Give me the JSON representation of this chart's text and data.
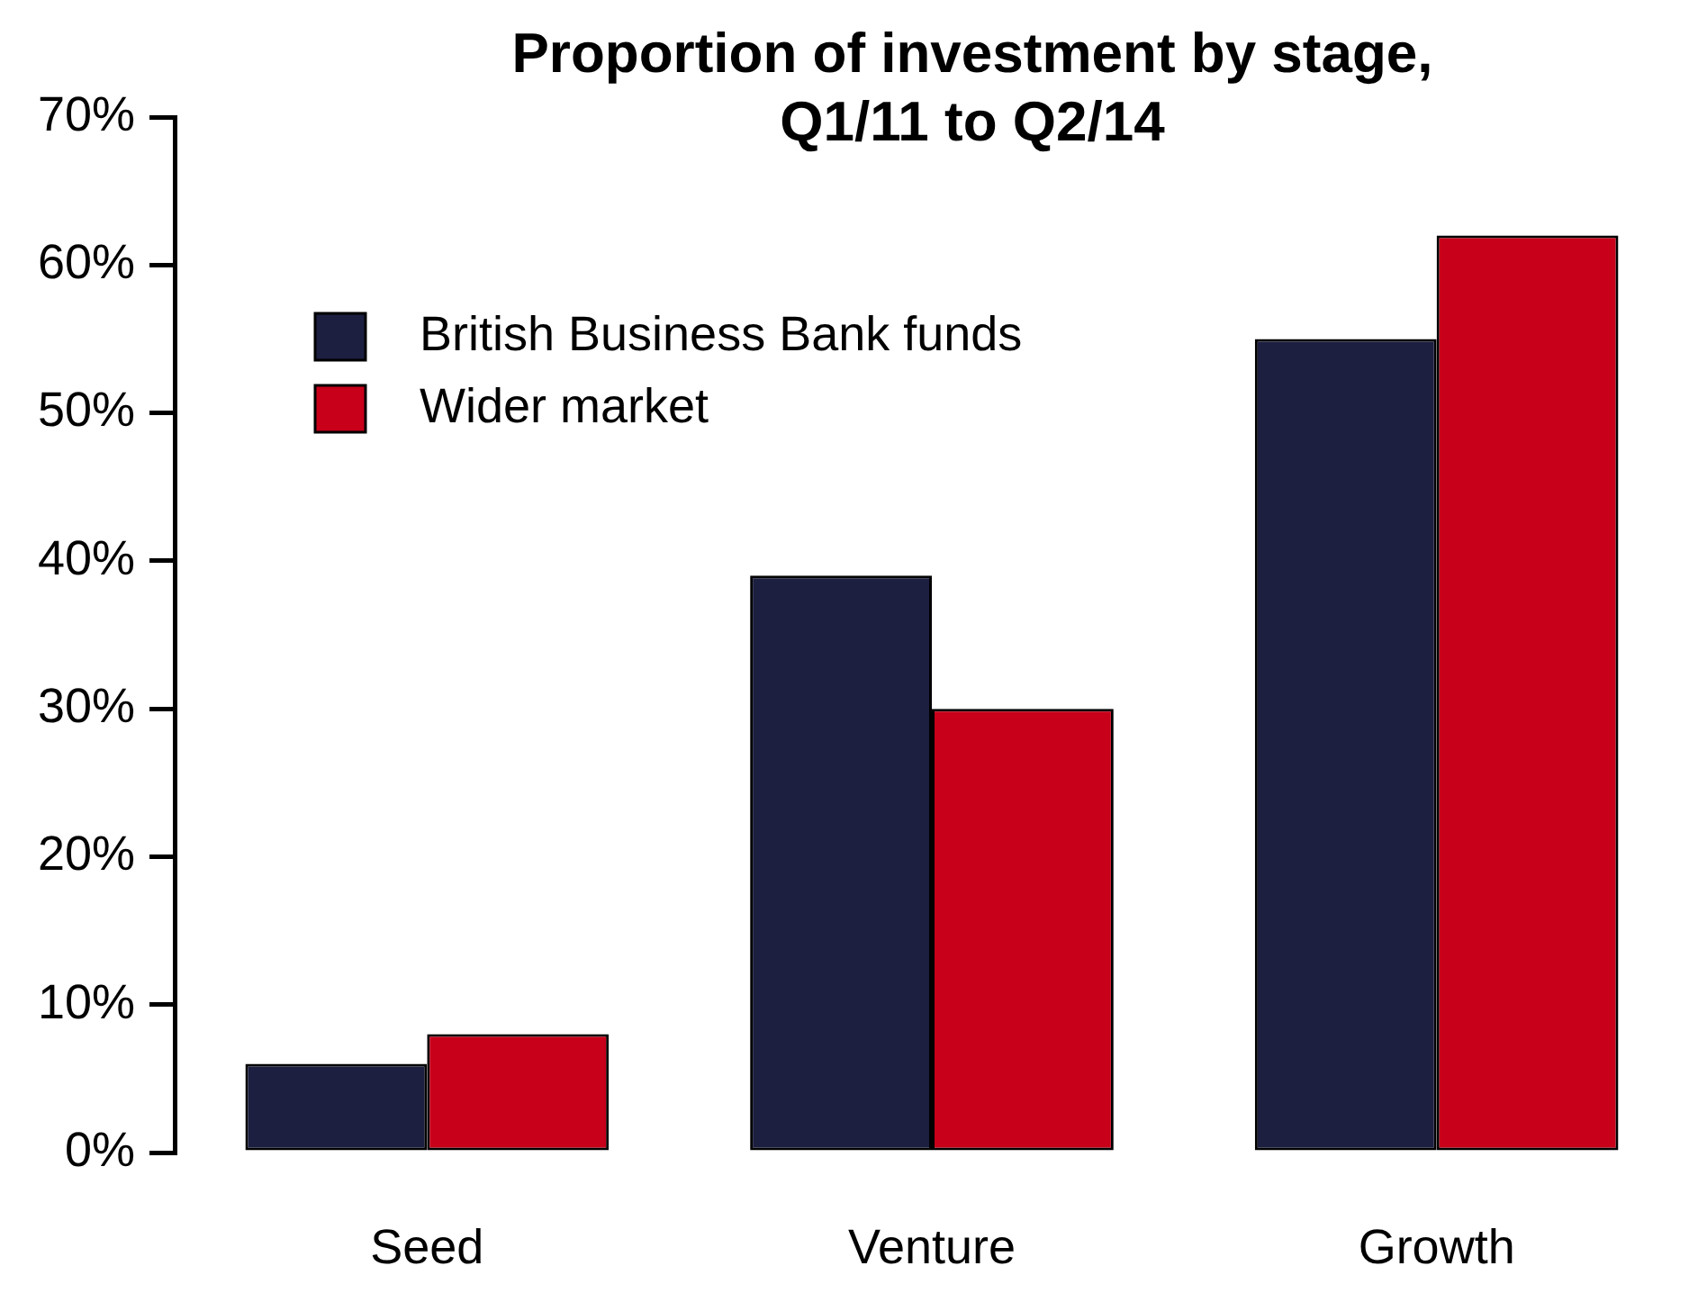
{
  "chart_data": {
    "type": "bar",
    "title": "Proportion of investment by stage, Q1/11 to Q2/14",
    "categories": [
      "Seed",
      "Venture",
      "Growth"
    ],
    "series": [
      {
        "name": "British Business Bank funds",
        "color": "#1c1f40",
        "values": [
          6,
          39,
          55
        ]
      },
      {
        "name": "Wider market",
        "color": "#c8001a",
        "values": [
          8,
          30,
          62
        ]
      }
    ],
    "ylim": [
      0,
      70
    ],
    "yticks": [
      {
        "value": 0,
        "label": "0%"
      },
      {
        "value": 10,
        "label": "10%"
      },
      {
        "value": 20,
        "label": "20%"
      },
      {
        "value": 30,
        "label": "30%"
      },
      {
        "value": 40,
        "label": "40%"
      },
      {
        "value": 50,
        "label": "50%"
      },
      {
        "value": 60,
        "label": "60%"
      },
      {
        "value": 70,
        "label": "70%"
      }
    ],
    "grid": false,
    "legend": "top left"
  }
}
